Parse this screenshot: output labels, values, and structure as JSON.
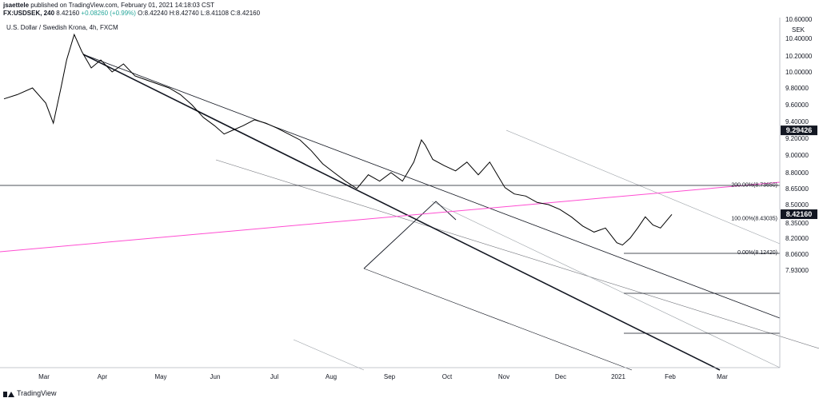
{
  "header": {
    "author": "jsaettele",
    "published": "published on TradingView.com, February 01, 2021 14:18:03 CST",
    "symbol": "FX:USDSEK, 240",
    "last": "8.42160",
    "change": "+0.08260 (+0.99%)",
    "open": "O:8.42240",
    "high": "H:8.42740",
    "low": "L:8.41108",
    "close": "C:8.42160"
  },
  "symbol_title": "U.S. Dollar / Swedish Krona, 4h, FXCM",
  "footer": {
    "brand": "TradingView"
  },
  "chart_data": {
    "type": "line",
    "title": "U.S. Dollar / Swedish Krona, 4h, FXCM",
    "currency": "SEK",
    "ylim": [
      7.93,
      10.6
    ],
    "price_ticks": [
      "10.60000",
      "10.40000",
      "10.20000",
      "10.00000",
      "9.80000",
      "9.60000",
      "9.40000",
      "9.20000",
      "9.00000",
      "8.80000",
      "8.65000",
      "8.50000",
      "8.35000",
      "8.20000",
      "8.06000",
      "7.93000"
    ],
    "x_ticks": [
      "Mar",
      "Apr",
      "May",
      "Jun",
      "Jul",
      "Aug",
      "Sep",
      "Oct",
      "Nov",
      "Dec",
      "2021",
      "Feb",
      "Mar"
    ],
    "x": [
      "2020-02-15",
      "2020-02-22",
      "2020-03-01",
      "2020-03-08",
      "2020-03-12",
      "2020-03-16",
      "2020-03-19",
      "2020-03-23",
      "2020-03-27",
      "2020-04-01",
      "2020-04-06",
      "2020-04-12",
      "2020-04-18",
      "2020-04-24",
      "2020-04-30",
      "2020-05-06",
      "2020-05-12",
      "2020-05-18",
      "2020-05-24",
      "2020-05-30",
      "2020-06-05",
      "2020-06-10",
      "2020-06-15",
      "2020-06-20",
      "2020-06-26",
      "2020-07-02",
      "2020-07-08",
      "2020-07-14",
      "2020-07-20",
      "2020-07-26",
      "2020-08-01",
      "2020-08-07",
      "2020-08-13",
      "2020-08-19",
      "2020-08-25",
      "2020-08-31",
      "2020-09-06",
      "2020-09-12",
      "2020-09-18",
      "2020-09-22",
      "2020-09-24",
      "2020-09-28",
      "2020-10-04",
      "2020-10-10",
      "2020-10-16",
      "2020-10-22",
      "2020-10-28",
      "2020-11-01",
      "2020-11-05",
      "2020-11-10",
      "2020-11-16",
      "2020-11-22",
      "2020-11-28",
      "2020-12-04",
      "2020-12-10",
      "2020-12-16",
      "2020-12-22",
      "2020-12-28",
      "2021-01-03",
      "2021-01-06",
      "2021-01-10",
      "2021-01-14",
      "2021-01-18",
      "2021-01-22",
      "2021-01-26",
      "2021-02-01"
    ],
    "series": [
      {
        "values": [
          9.67,
          9.72,
          9.8,
          9.62,
          9.38,
          9.8,
          10.15,
          10.44,
          10.25,
          10.05,
          10.15,
          10.0,
          10.1,
          9.95,
          9.9,
          9.85,
          9.8,
          9.72,
          9.6,
          9.45,
          9.35,
          9.25,
          9.3,
          9.35,
          9.42,
          9.38,
          9.32,
          9.25,
          9.18,
          9.05,
          8.9,
          8.8,
          8.72,
          8.65,
          8.78,
          8.72,
          8.8,
          8.72,
          8.92,
          9.18,
          9.12,
          8.95,
          8.88,
          8.82,
          8.92,
          8.78,
          8.92,
          8.78,
          8.66,
          8.6,
          8.58,
          8.52,
          8.5,
          8.46,
          8.4,
          8.32,
          8.26,
          8.3,
          8.16,
          8.14,
          8.2,
          8.3,
          8.4,
          8.33,
          8.3,
          8.42
        ]
      }
    ],
    "horizontal_levels": [
      {
        "value": 9.29426,
        "label": "9.29426"
      },
      {
        "value": 8.7365,
        "label": "200.00%(8.73650)"
      },
      {
        "value": 8.43035,
        "label": "100.00%(8.43035)"
      },
      {
        "value": 8.1242,
        "label": "0.00%(8.12420)"
      }
    ],
    "last_price": {
      "value": 8.4216,
      "label": "8.42160"
    },
    "colors": {
      "price": "#000000",
      "pink_line": "#ff4dd2",
      "thin_lines": "#9aa0a6",
      "tag_bg": "#131722"
    }
  }
}
